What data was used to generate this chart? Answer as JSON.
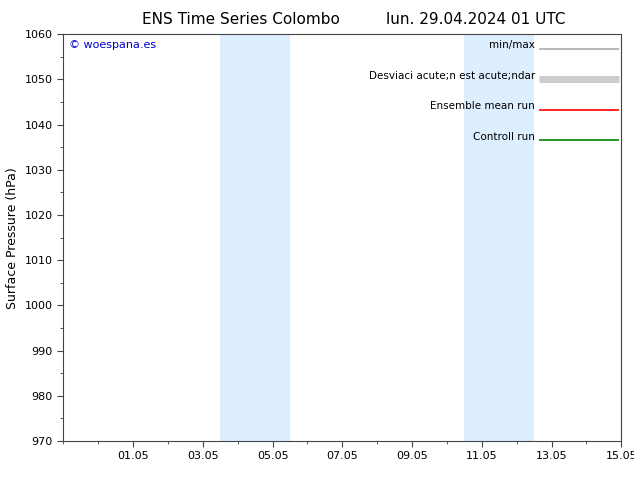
{
  "title_left": "ENS Time Series Colombo",
  "title_right": "lun. 29.04.2024 01 UTC",
  "ylabel": "Surface Pressure (hPa)",
  "ylim": [
    970,
    1060
  ],
  "yticks": [
    970,
    980,
    990,
    1000,
    1010,
    1020,
    1030,
    1040,
    1050,
    1060
  ],
  "xtick_labels": [
    "01.05",
    "03.05",
    "05.05",
    "07.05",
    "09.05",
    "11.05",
    "13.05",
    "15.05"
  ],
  "xtick_positions": [
    2,
    4,
    6,
    8,
    10,
    12,
    14,
    16
  ],
  "xlim": [
    0,
    16
  ],
  "shade_bands": [
    {
      "xmin": 4.5,
      "xmax": 6.5
    },
    {
      "xmin": 11.5,
      "xmax": 13.5
    }
  ],
  "shade_color": "#ddeeff",
  "watermark": "© woespana.es",
  "watermark_color": "#0000cc",
  "legend_items": [
    {
      "label": "min/max",
      "color": "#aaaaaa",
      "lw": 1.2
    },
    {
      "label": "Desviaci acute;n est acute;ndar",
      "color": "#cccccc",
      "lw": 5
    },
    {
      "label": "Ensemble mean run",
      "color": "#ff0000",
      "lw": 1.2
    },
    {
      "label": "Controll run",
      "color": "#008800",
      "lw": 1.2
    }
  ],
  "background_color": "#ffffff",
  "axis_color": "#444444",
  "title_fontsize": 11,
  "tick_fontsize": 8,
  "ylabel_fontsize": 9,
  "legend_fontsize": 7.5,
  "watermark_fontsize": 8
}
